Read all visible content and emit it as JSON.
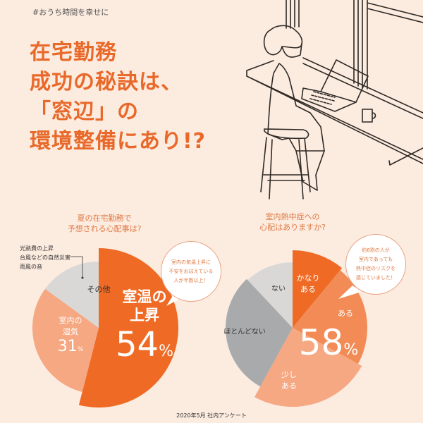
{
  "hashtag": "#おうち時間を幸せに",
  "headline": [
    "在宅勤務",
    "成功の秘訣は、",
    "「窓辺」の",
    "環境整備にあり!?"
  ],
  "colors": {
    "background": "#fcebdf",
    "accent": "#ef6a24",
    "accent_mid": "#f28b55",
    "accent_light": "#f5a882",
    "gray_light": "#d9d8d6",
    "gray_mid": "#a8aaac"
  },
  "chart_data": [
    {
      "type": "pie",
      "title": "夏の在宅勤務で\n予想される心配事は?",
      "title_lines": [
        "夏の在宅勤務で",
        "予想される心配事は?"
      ],
      "slices": [
        {
          "label": "室温の上昇",
          "label_lines": [
            "室温の",
            "上昇"
          ],
          "value": 54,
          "value_text": "54",
          "unit": "%",
          "color": "#ef6a24"
        },
        {
          "label": "室内の湿気",
          "label_lines": [
            "室内の",
            "湿気"
          ],
          "value": 31,
          "value_text": "31",
          "unit": "%",
          "color": "#f5a882"
        },
        {
          "label": "その他",
          "label_lines": [
            "その他"
          ],
          "value": 15,
          "color": "#d9d8d6"
        }
      ],
      "other_note": [
        "光熱費の上昇",
        "台風などの自然災害",
        "雨風の音"
      ],
      "callout": [
        "室内の気温上昇に",
        "不安をおぼえている",
        "人が半数以上！"
      ]
    },
    {
      "type": "pie",
      "title": "室内熱中症への\n心配はありますか?",
      "title_lines": [
        "室内熱中症への",
        "心配はありますか?"
      ],
      "slices": [
        {
          "label": "かなりある",
          "label_lines": [
            "かなり",
            "ある"
          ],
          "value": 11,
          "color": "#ef6a24"
        },
        {
          "label": "ある",
          "label_lines": [
            "ある"
          ],
          "value": 22,
          "color": "#f28b55"
        },
        {
          "label": "少しある",
          "label_lines": [
            "少し",
            "ある"
          ],
          "value": 25,
          "color": "#f5a882"
        },
        {
          "label": "ほとんどない",
          "label_lines": [
            "ほとんどない"
          ],
          "value": 30,
          "color": "#a8aaac"
        },
        {
          "label": "ない",
          "label_lines": [
            "ない"
          ],
          "value": 12,
          "color": "#d9d8d6"
        }
      ],
      "combined_value_text": "58",
      "combined_unit": "%",
      "callout": [
        "約6割の人が",
        "室内であっても",
        "熱中症のリスクを",
        "感じていました！"
      ]
    }
  ],
  "footer": "2020年5月 社内アンケート"
}
